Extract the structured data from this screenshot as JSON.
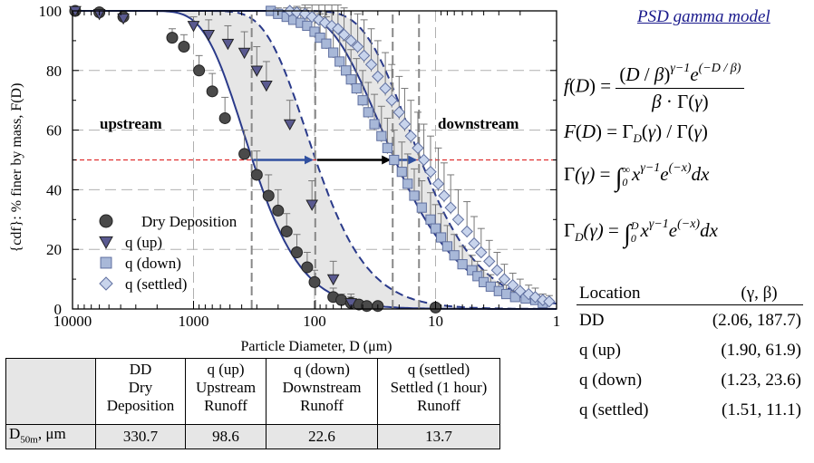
{
  "chart_data": {
    "type": "scatter",
    "xlabel": "Particle Diameter, D (μm)",
    "ylabel": "{cdf}: % finer by mass, F(D)",
    "x_scale": "log",
    "x_reversed": true,
    "xlim": [
      10000,
      1
    ],
    "ylim": [
      0,
      100
    ],
    "x_tick_labels": [
      "10000",
      "1000",
      "100",
      "10",
      "1"
    ],
    "y_tick_labels": [
      "0",
      "20",
      "40",
      "60",
      "80",
      "100"
    ],
    "grid": true,
    "legend_position": "lower-left",
    "annotations": [
      "upstream",
      "downstream"
    ],
    "reference_line": {
      "y": 50,
      "color": "#e03030",
      "style": "dashed"
    },
    "series": [
      {
        "name": "Dry Deposition",
        "marker": "circle",
        "color": "#4a4a4a",
        "x": [
          9500,
          6000,
          3800,
          1500,
          1200,
          900,
          700,
          550,
          380,
          300,
          240,
          200,
          170,
          140,
          115,
          100,
          70,
          60,
          50,
          43,
          37,
          30,
          10
        ],
        "y": [
          100,
          99.5,
          98,
          91,
          88,
          80,
          73,
          64,
          52,
          45,
          38,
          33,
          26,
          19,
          14,
          9,
          4,
          3,
          2,
          1.5,
          1,
          1,
          0.5
        ],
        "err": [
          0,
          1,
          2,
          3,
          4,
          5,
          6,
          7,
          8,
          8,
          7,
          7,
          6,
          6,
          5,
          4,
          3,
          2,
          2,
          1,
          1,
          1,
          0
        ]
      },
      {
        "name": "q (up)",
        "marker": "triangle-down",
        "color": "#5a5a90",
        "x": [
          9500,
          6000,
          3800,
          1000,
          750,
          520,
          380,
          300,
          250,
          160,
          105,
          70,
          50
        ],
        "y": [
          100,
          99,
          97.5,
          95,
          92,
          89,
          86,
          80,
          75,
          62,
          35,
          10,
          2
        ],
        "err": [
          0,
          1,
          2,
          3,
          5,
          6,
          7,
          8,
          8,
          8,
          8,
          6,
          3
        ]
      },
      {
        "name": "q (down)",
        "marker": "square",
        "color": "#a8b8d8",
        "x": [
          230,
          200,
          170,
          150,
          130,
          115,
          100,
          90,
          80,
          70,
          62,
          55,
          50,
          45,
          40,
          36,
          32,
          28,
          25,
          22,
          19,
          17,
          15,
          13,
          11,
          10,
          9,
          8,
          7,
          6,
          5,
          4.5,
          4,
          3.5,
          3,
          2.6,
          2.2,
          1.8,
          1.5,
          1.3
        ],
        "y": [
          100,
          99,
          98,
          97,
          96,
          95,
          93,
          91,
          89,
          86,
          83,
          80,
          77,
          74,
          70,
          66,
          62,
          58,
          54,
          50,
          46,
          42,
          38,
          34,
          30,
          27,
          24,
          21,
          18,
          15,
          13,
          11,
          9,
          7.5,
          6,
          5,
          4,
          3.5,
          3,
          2
        ],
        "err": [
          1,
          2,
          3,
          4,
          5,
          6,
          7,
          8,
          9,
          9,
          10,
          10,
          10,
          10,
          10,
          10,
          10,
          10,
          10,
          10,
          10,
          10,
          9,
          9,
          9,
          8,
          8,
          7,
          7,
          6,
          5,
          5,
          4,
          4,
          3,
          3,
          2,
          2,
          2,
          1
        ]
      },
      {
        "name": "q (settled)",
        "marker": "diamond",
        "color": "#c8d4ec",
        "x": [
          160,
          140,
          120,
          105,
          92,
          82,
          72,
          64,
          57,
          50,
          44,
          39,
          34,
          30,
          26,
          23,
          20,
          18,
          16,
          14,
          12.5,
          11,
          9.5,
          8.5,
          7.5,
          6.5,
          5.5,
          4.8,
          4.2,
          3.6,
          3.1,
          2.7,
          2.3,
          2,
          1.7,
          1.5,
          1.3,
          1.15
        ],
        "y": [
          100,
          99.5,
          99,
          98,
          97,
          96,
          95,
          94,
          92,
          90,
          88,
          85,
          82,
          78,
          74,
          70,
          66,
          62,
          58,
          54,
          50,
          46,
          42,
          38,
          34,
          30,
          26,
          22,
          19,
          16,
          13,
          10,
          8,
          6,
          5,
          4,
          3,
          2.5
        ],
        "err": [
          1,
          2,
          3,
          4,
          5,
          6,
          7,
          8,
          9,
          10,
          11,
          12,
          12,
          12,
          12,
          12,
          12,
          12,
          12,
          12,
          12,
          12,
          12,
          11,
          11,
          10,
          10,
          9,
          8,
          7,
          6,
          5,
          4,
          4,
          3,
          3,
          2,
          2
        ]
      }
    ],
    "median_lines_x": [
      330.7,
      98.6,
      22.6,
      13.7
    ],
    "arrows": [
      {
        "from_x": 330.7,
        "to_x": 98.6,
        "color": "#3050a0"
      },
      {
        "from_x": 98.6,
        "to_x": 22.6,
        "color": "#000000"
      },
      {
        "from_x": 22.6,
        "to_x": 13.7,
        "color": "#3050a0"
      }
    ],
    "fit_curves": [
      {
        "series": "Dry Deposition",
        "gamma": 2.06,
        "beta": 187.7,
        "style": "solid",
        "color": "#2a3a8a"
      },
      {
        "series": "q (up)",
        "gamma": 1.9,
        "beta": 61.9,
        "style": "dashed",
        "color": "#2a3a8a"
      },
      {
        "series": "q (down)",
        "gamma": 1.23,
        "beta": 23.6,
        "style": "solid",
        "color": "#2a3a8a"
      },
      {
        "series": "q (settled)",
        "gamma": 1.51,
        "beta": 11.1,
        "style": "dashed",
        "color": "#2a3a8a"
      }
    ]
  },
  "model": {
    "title": "PSD gamma model"
  },
  "params_table": {
    "header": {
      "location": "Location",
      "params": "(γ, β)"
    },
    "rows": [
      {
        "location": "DD",
        "params": "(2.06, 187.7)"
      },
      {
        "location": "q (up)",
        "params": "(1.90, 61.9)"
      },
      {
        "location": "q (down)",
        "params": "(1.23, 23.6)"
      },
      {
        "location": "q (settled)",
        "params": "(1.51, 11.1)"
      }
    ]
  },
  "d50_table": {
    "columns": [
      {
        "l1": "DD",
        "l2": "Dry",
        "l3": "Deposition",
        "value": "330.7"
      },
      {
        "l1": "q (up)",
        "l2": "Upstream",
        "l3": "Runoff",
        "value": "98.6"
      },
      {
        "l1": "q (down)",
        "l2": "Downstream",
        "l3": "Runoff",
        "value": "22.6"
      },
      {
        "l1": "q (settled)",
        "l2": "Settled (1 hour)",
        "l3": "Runoff",
        "value": "13.7"
      }
    ],
    "row_label_main": "D",
    "row_label_sub": "50m",
    "row_label_unit": ", μm"
  }
}
